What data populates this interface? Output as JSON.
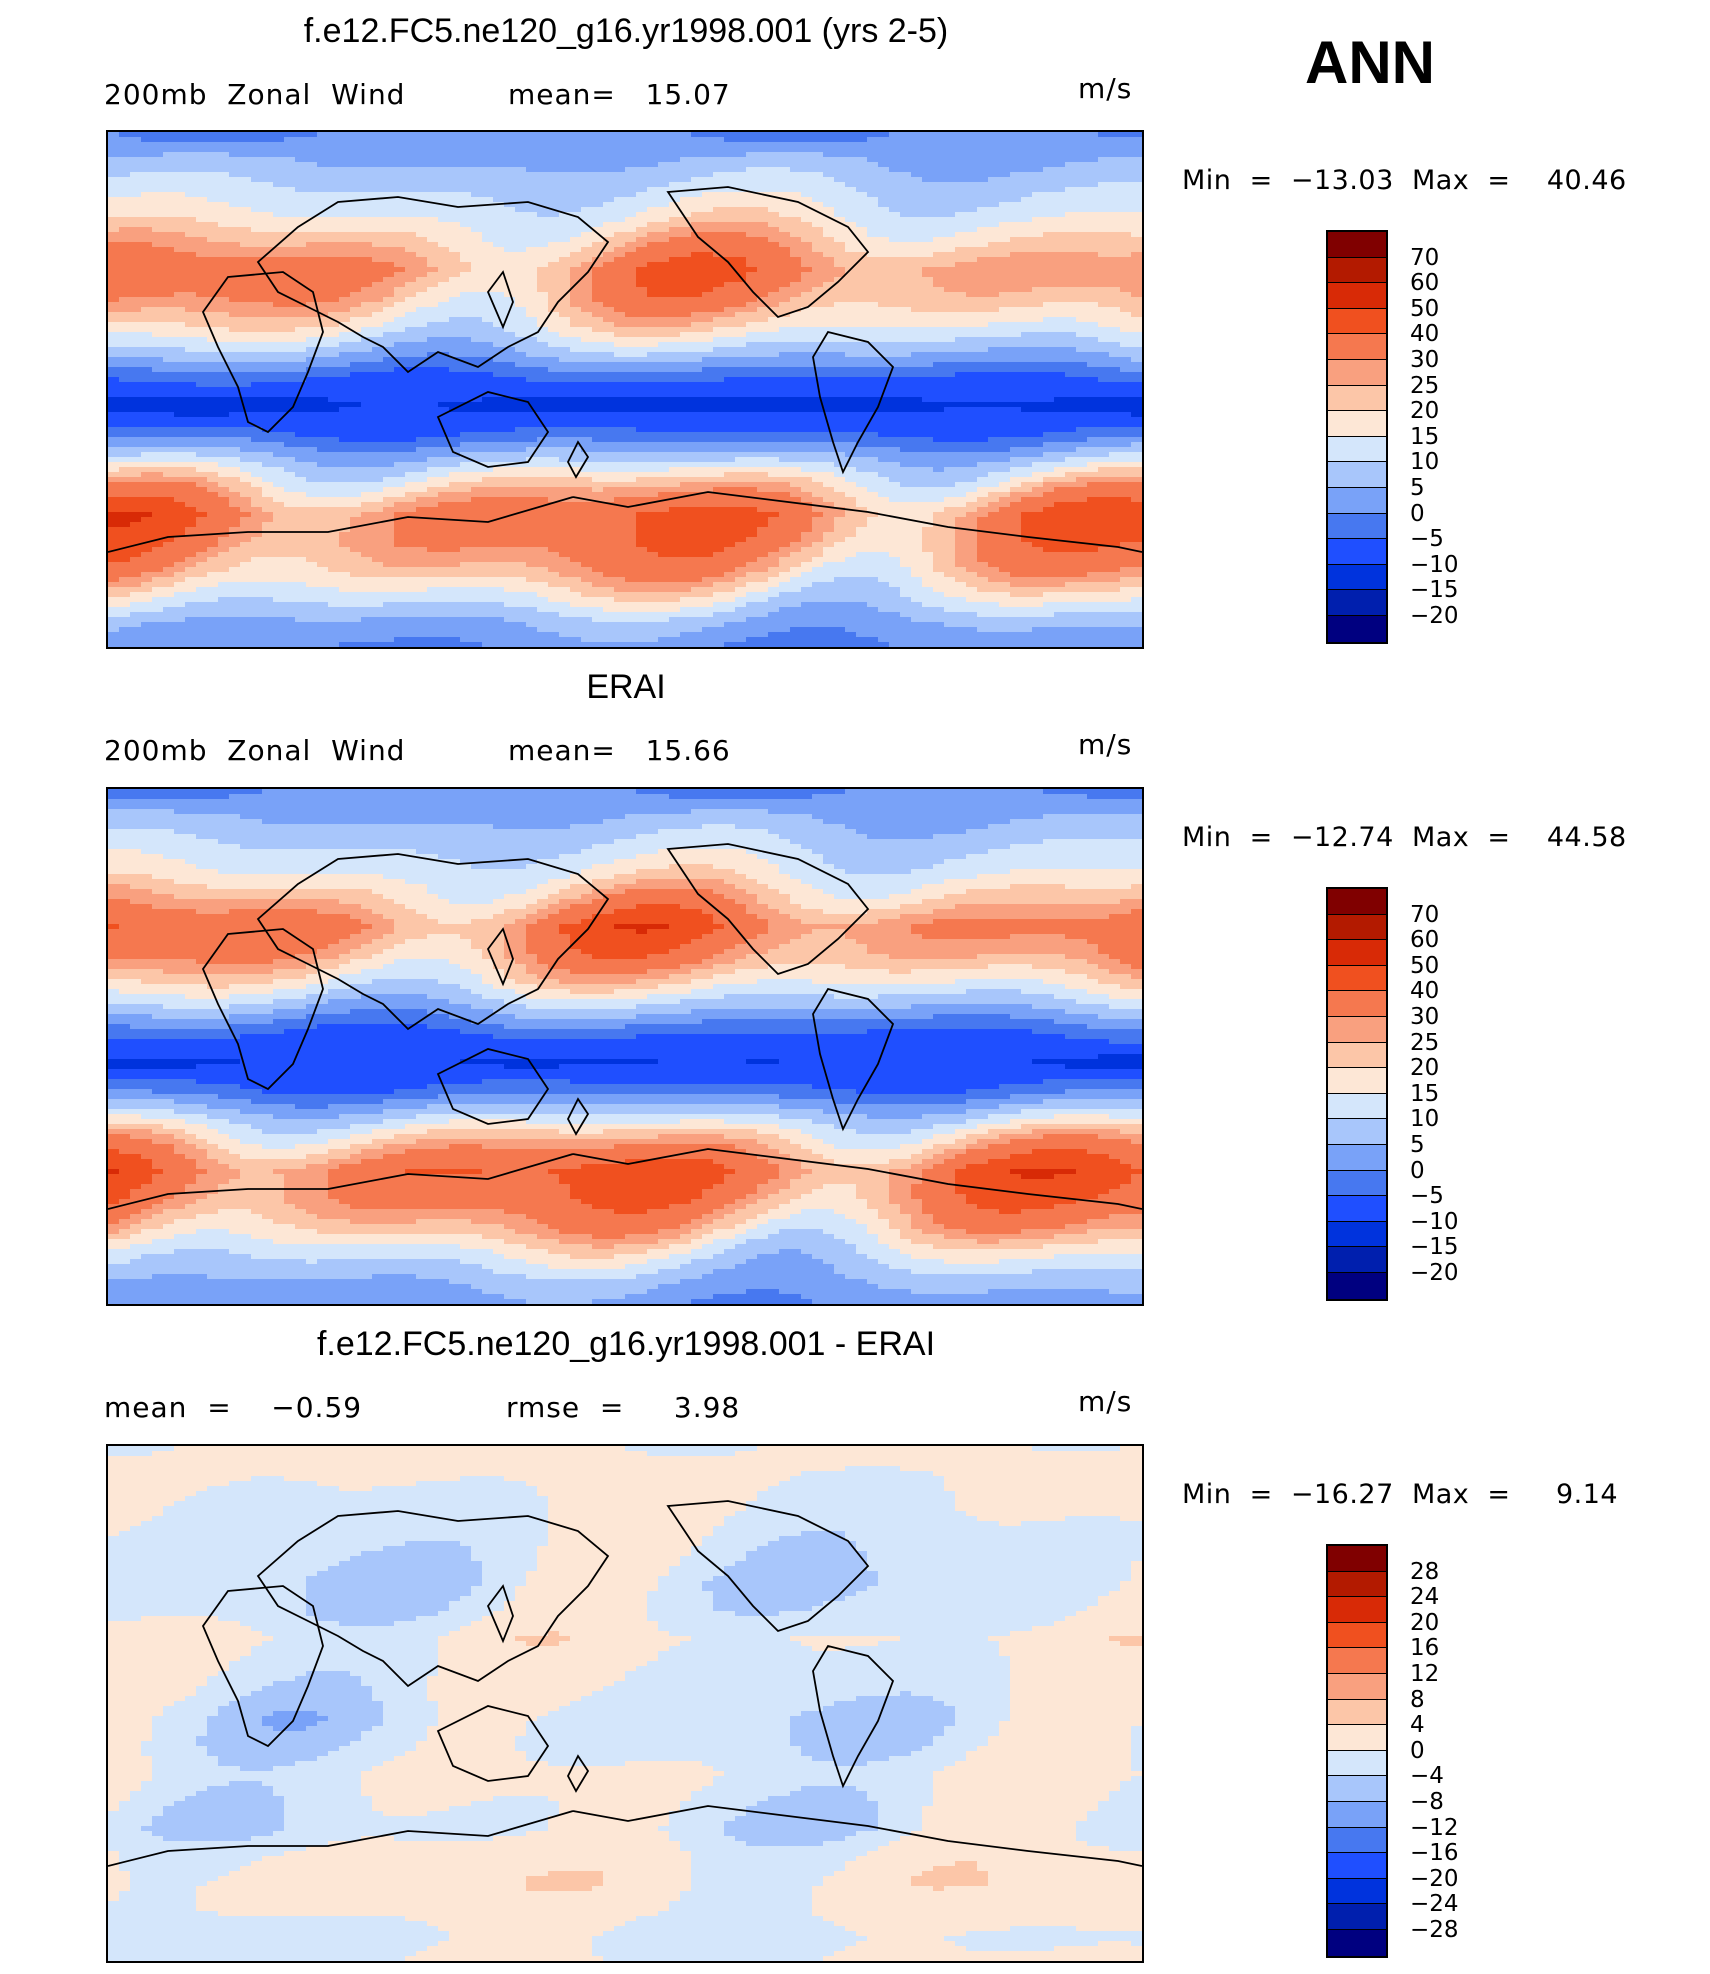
{
  "season": "ANN",
  "colors": {
    "abs": [
      "#000080",
      "#001fae",
      "#0033dd",
      "#1f4fff",
      "#4778f0",
      "#79a2f8",
      "#a8c6fb",
      "#d4e6fb",
      "#fde7d6",
      "#fcc6a8",
      "#f9a07f",
      "#f5784f",
      "#f0501f",
      "#d82a06",
      "#b31a00",
      "#800000"
    ],
    "diff": [
      "#000080",
      "#001fae",
      "#0033dd",
      "#1f4fff",
      "#4778f0",
      "#79a2f8",
      "#a8c6fb",
      "#d4e6fb",
      "#fde7d6",
      "#fcc6a8",
      "#f9a07f",
      "#f5784f",
      "#f0501f",
      "#d82a06",
      "#b31a00",
      "#800000"
    ]
  },
  "panels": [
    {
      "title": "f.e12.FC5.ne120_g16.yr1998.001 (yrs 2-5)",
      "left_label": "200mb  Zonal  Wind",
      "stat_label": "mean=   15.07",
      "units": "m/s",
      "minmax": "Min  =  −13.03  Max  =    40.46",
      "levels": [
        "70",
        "60",
        "50",
        "40",
        "30",
        "25",
        "20",
        "15",
        "10",
        "5",
        "0",
        "−5",
        "−10",
        "−15",
        "−20"
      ],
      "bands": [
        [
          0,
          -3
        ],
        [
          5,
          3
        ],
        [
          10,
          4
        ],
        [
          15,
          6
        ],
        [
          23,
          10
        ],
        [
          32,
          13
        ],
        [
          27,
          12
        ],
        [
          18,
          8
        ],
        [
          7,
          5
        ],
        [
          -5,
          3
        ],
        [
          -12,
          -2
        ],
        [
          -5,
          3
        ],
        [
          8,
          5
        ],
        [
          22,
          11
        ],
        [
          35,
          14
        ],
        [
          33,
          13
        ],
        [
          26,
          12
        ],
        [
          15,
          8
        ],
        [
          5,
          4
        ],
        [
          0,
          3
        ]
      ]
    },
    {
      "title": "ERAI",
      "left_label": "200mb  Zonal  Wind",
      "stat_label": "mean=   15.66",
      "units": "m/s",
      "minmax": "Min  =  −12.74  Max  =    44.58",
      "levels": [
        "70",
        "60",
        "50",
        "40",
        "30",
        "25",
        "20",
        "15",
        "10",
        "5",
        "0",
        "−5",
        "−10",
        "−15",
        "−20"
      ],
      "bands": [
        [
          0,
          -3
        ],
        [
          5,
          3
        ],
        [
          10,
          4
        ],
        [
          15,
          6
        ],
        [
          24,
          11
        ],
        [
          35,
          14
        ],
        [
          29,
          12
        ],
        [
          18,
          8
        ],
        [
          6,
          5
        ],
        [
          -6,
          3
        ],
        [
          -10,
          -2
        ],
        [
          -4,
          3
        ],
        [
          10,
          5
        ],
        [
          25,
          11
        ],
        [
          38,
          14
        ],
        [
          34,
          13
        ],
        [
          25,
          12
        ],
        [
          14,
          8
        ],
        [
          6,
          4
        ],
        [
          1,
          3
        ]
      ]
    },
    {
      "title": "f.e12.FC5.ne120_g16.yr1998.001 - ERAI",
      "left_label": "mean  =    −0.59",
      "stat_label": "rmse  =     3.98",
      "units": "m/s",
      "minmax": "Min  =  −16.27  Max  =     9.14",
      "levels": [
        "28",
        "24",
        "20",
        "16",
        "12",
        "8",
        "4",
        "0",
        "−4",
        "−8",
        "−12",
        "−16",
        "−20",
        "−24",
        "−28"
      ],
      "bands": [
        [
          1,
          -2
        ],
        [
          1,
          2
        ],
        [
          0,
          3
        ],
        [
          -1,
          3
        ],
        [
          -2,
          4
        ],
        [
          -3,
          5
        ],
        [
          -2,
          4
        ],
        [
          1,
          3
        ],
        [
          0,
          3
        ],
        [
          -1,
          4
        ],
        [
          -3,
          5
        ],
        [
          -2,
          4
        ],
        [
          0,
          3
        ],
        [
          -1,
          4
        ],
        [
          -2,
          5
        ],
        [
          1,
          3
        ],
        [
          2,
          3
        ],
        [
          1,
          2
        ],
        [
          -1,
          2
        ],
        [
          0,
          2
        ]
      ]
    }
  ]
}
